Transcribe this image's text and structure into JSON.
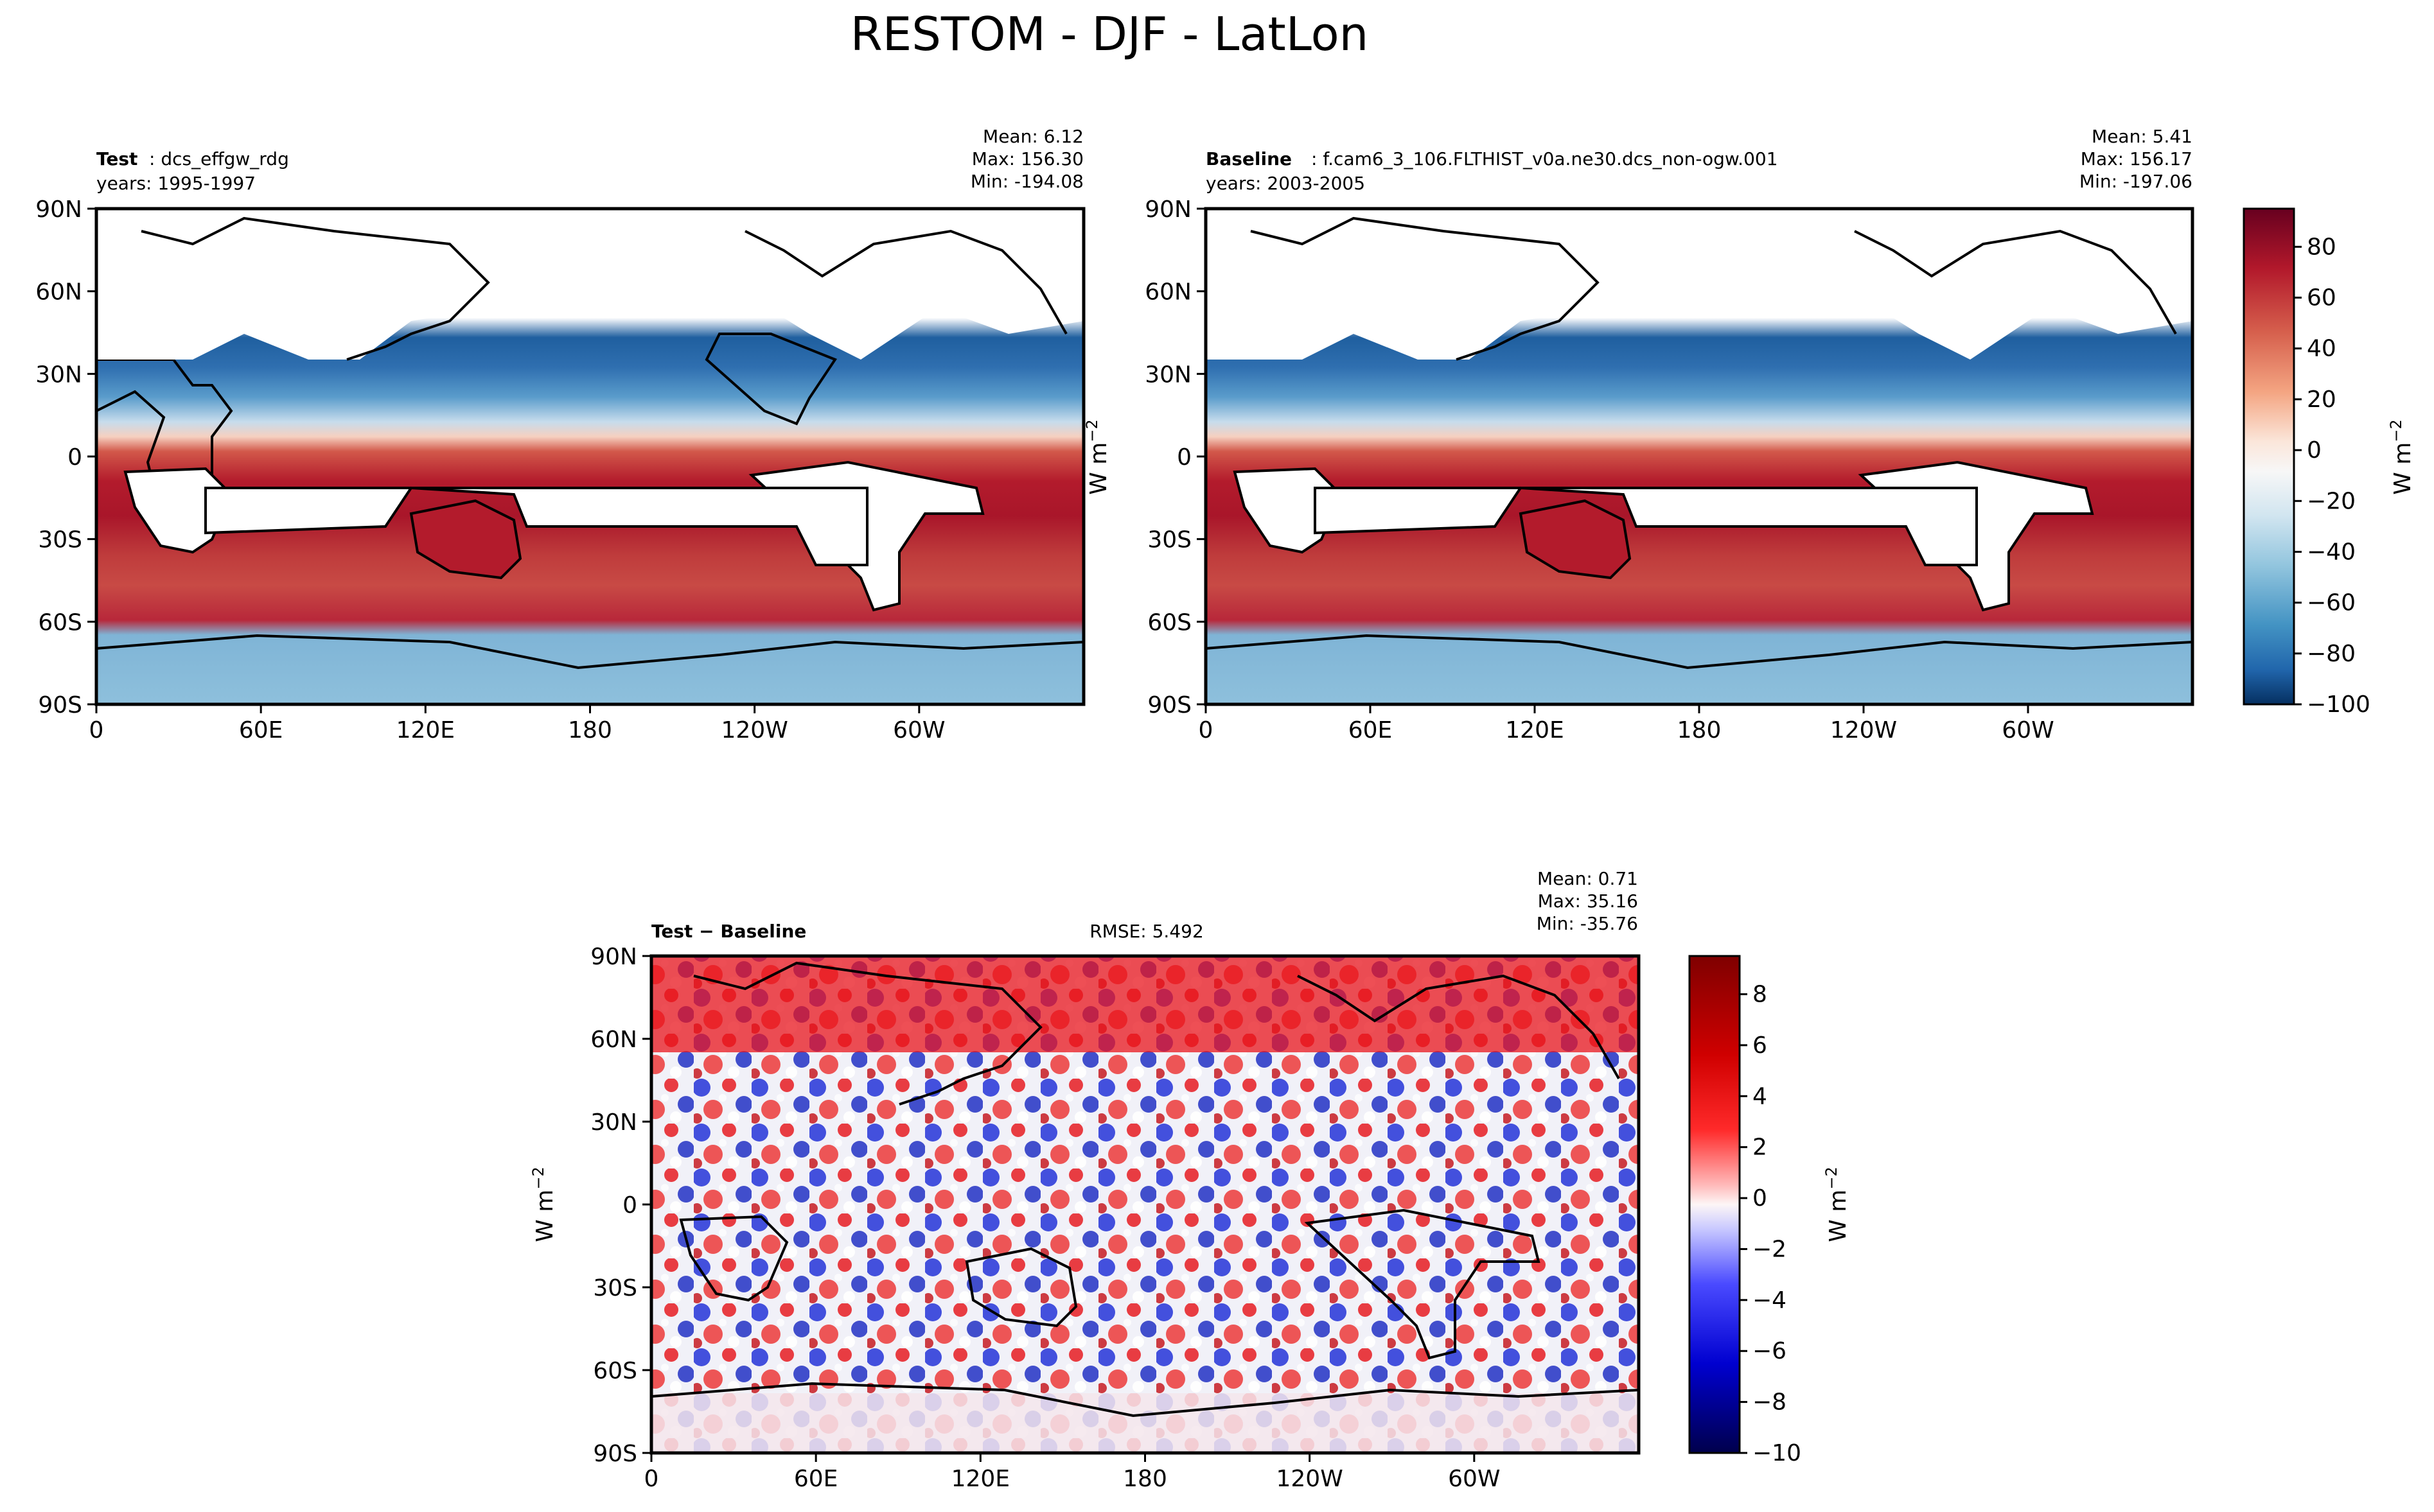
{
  "figure": {
    "title": "RESTOM - DJF - LatLon"
  },
  "chart_data": [
    {
      "type": "heatmap",
      "panel": "test",
      "header_left_bold": "Test",
      "header_left_rest": ": dcs_effgw_rdg",
      "years": "years: 1995-1997",
      "stats": {
        "mean": "Mean:  6.12",
        "max": "Max: 156.30",
        "min": "Min: -194.08"
      },
      "x_ticks": [
        "0",
        "60E",
        "120E",
        "180",
        "120W",
        "60W"
      ],
      "y_ticks": [
        "90N",
        "60N",
        "30N",
        "0",
        "30S",
        "60S",
        "90S"
      ],
      "units_label": "W m",
      "units_exp": "−2",
      "xlim": [
        0,
        360
      ],
      "ylim": [
        -90,
        90
      ]
    },
    {
      "type": "heatmap",
      "panel": "baseline",
      "header_left_bold": "Baseline",
      "header_left_rest": ": f.cam6_3_106.FLTHIST_v0a.ne30.dcs_non-ogw.001",
      "years": "years: 2003-2005",
      "stats": {
        "mean": "Mean:  5.41",
        "max": "Max: 156.17",
        "min": "Min: -197.06"
      },
      "x_ticks": [
        "0",
        "60E",
        "120E",
        "180",
        "120W",
        "60W"
      ],
      "y_ticks": [
        "90N",
        "60N",
        "30N",
        "0",
        "30S",
        "60S",
        "90S"
      ],
      "xlim": [
        0,
        360
      ],
      "ylim": [
        -90,
        90
      ],
      "colorbar": {
        "ticks": [
          "80",
          "60",
          "40",
          "20",
          "0",
          "−20",
          "−40",
          "−60",
          "−80",
          "−100"
        ],
        "range": [
          -100,
          95
        ],
        "label": "W m",
        "label_exp": "−2"
      }
    },
    {
      "type": "heatmap",
      "panel": "difference",
      "header_left": "Test − Baseline",
      "rmse": "RMSE: 5.492",
      "stats": {
        "mean": "Mean:  0.71",
        "max": "Max: 35.16",
        "min": "Min: -35.76"
      },
      "x_ticks": [
        "0",
        "60E",
        "120E",
        "180",
        "120W",
        "60W"
      ],
      "y_ticks": [
        "90N",
        "60N",
        "30N",
        "0",
        "30S",
        "60S",
        "90S"
      ],
      "units_label": "W m",
      "units_exp": "−2",
      "xlim": [
        0,
        360
      ],
      "ylim": [
        -90,
        90
      ],
      "colorbar": {
        "ticks": [
          "8",
          "6",
          "4",
          "2",
          "0",
          "−2",
          "−4",
          "−6",
          "−8",
          "−10"
        ],
        "range": [
          -10,
          9.5
        ],
        "label": "W m",
        "label_exp": "−2"
      }
    }
  ],
  "colors": {
    "red_dark": "#8c0d25",
    "red": "#c5383c",
    "red_light": "#ea9d80",
    "white": "#f7f7f7",
    "blue_light": "#8ebfdc",
    "blue": "#3a7fb8",
    "blue_dark": "#154d88",
    "diff_red": "#e8141c",
    "diff_blue": "#1a2bd6",
    "diff_dark_red": "#7a0000",
    "diff_dark_blue": "#00006b"
  }
}
